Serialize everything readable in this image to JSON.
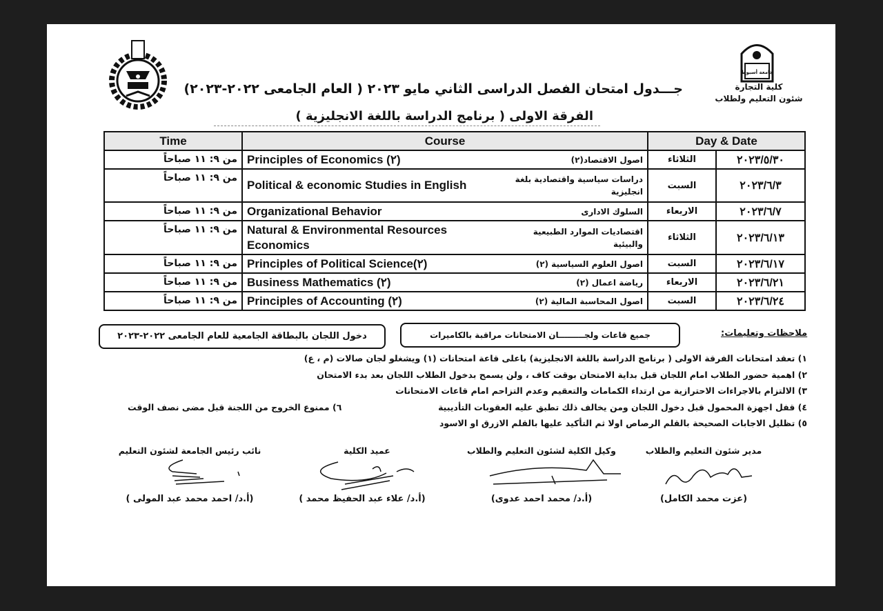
{
  "header": {
    "faculty_name": "كلية التجارة",
    "department": "شئون التعليم ولطلاب",
    "university_logo_text": "جامعة أسيوط",
    "title": "جـــدول امتحان الفصل الدراسى الثاني مايو ٢٠٢٣ ( العام الجامعى ٢٠٢٢-٢٠٢٣)",
    "subtitle": "الفرقة الاولى ( برنامج الدراسة باللغة الانجليزية )"
  },
  "table": {
    "headers": {
      "time": "Time",
      "course": "Course",
      "day_date": "Day & Date"
    },
    "rows": [
      {
        "time": "من ٩: ١١ صباحاً",
        "course_en": "Principles of Economics (٢)",
        "course_ar": "اصول الاقتصاد(٢)",
        "day": "الثلاثاء",
        "date": "٢٠٢٣/٥/٣٠"
      },
      {
        "time": "من ٩: ١١ صباحاً",
        "course_en": "Political & economic Studies in English",
        "course_ar": "دراسات سياسية واقتصادية بلغة انجليزية",
        "day": "السبت",
        "date": "٢٠٢٣/٦/٣"
      },
      {
        "time": "من ٩: ١١ صباحاً",
        "course_en": "Organizational Behavior",
        "course_ar": "السلوك الادارى",
        "day": "الاربعاء",
        "date": "٢٠٢٣/٦/٧"
      },
      {
        "time": "من ٩: ١١ صباحاً",
        "course_en": "Natural & Environmental Resources Economics",
        "course_ar": "اقتصاديات الموارد الطبيعية والبيئية",
        "day": "الثلاثاء",
        "date": "٢٠٢٣/٦/١٣"
      },
      {
        "time": "من ٩: ١١ صباحاً",
        "course_en": "Principles of Political Science(٢)",
        "course_ar": "اصول العلوم السياسية (٢)",
        "day": "السبت",
        "date": "٢٠٢٣/٦/١٧"
      },
      {
        "time": "من ٩: ١١ صباحاً",
        "course_en": "Business Mathematics (٢)",
        "course_ar": "رياضة اعمال (٢)",
        "day": "الاربعاء",
        "date": "٢٠٢٣/٦/٢١"
      },
      {
        "time": "من ٩: ١١ صباحاً",
        "course_en": "Principles of Accounting (٢)",
        "course_ar": "اصول المحاسبة المالية (٢)",
        "day": "السبت",
        "date": "٢٠٢٣/٦/٢٤"
      }
    ]
  },
  "notes": {
    "label": "ملاحظات وتعليمات:",
    "box_cameras": "جميع قاعات ولجـــــــــان الامتحانات مراقبة بالكاميرات",
    "box_id_card": "دخول اللجان بالبطاقة الجامعية للعام الجامعى ٢٠٢٢-٢٠٢٣",
    "items": [
      "١) تعقد امتحانات الفرقة الاولى ( برنامج الدراسة باللغة الانجليزية) باعلى قاعة امتحانات (١) ويشغلو لجان صالات (م ، ع)",
      "٢) اهمية حضور الطلاب امام اللجان قبل بداية الامتحان بوقت كاف ، ولن يسمح بدخول الطلاب اللجان بعد بدء الامتحان",
      "٣) الالتزام بالاجراءات الاحترازية من ارتداء الكمامات والتعقيم وعدم التزاحم امام قاعات الامتحانات",
      "٤) قفل اجهزة المحمول قبل دخول اللجان ومن يخالف ذلك تطبق عليه العقوبات التأديبية",
      "٥) تظليل الاجابات الصحيحة بالقلم الرصاص اولا ثم التأكيد عليها بالقلم الازرق او الاسود",
      "٦) ممنوع الخروج من اللجنة قبل مضى نصف الوقت"
    ]
  },
  "signatures": [
    {
      "title": "مدير شئون التعليم والطلاب",
      "name": "(عزت محمد الكامل)",
      "handwriting": "عزت محمد الكامل"
    },
    {
      "title": "وكيل الكلية لشئون التعليم والطلاب",
      "name": "(أ.د/ محمد احمد عدوى)"
    },
    {
      "title": "عميد الكلية",
      "name": "(أ.د/ علاء عبد الحفيظ محمد )"
    },
    {
      "title": "نائب رئيس الجامعة لشئون التعليم",
      "name": "(أ.د/ احمد محمد عبد المولى )"
    }
  ]
}
